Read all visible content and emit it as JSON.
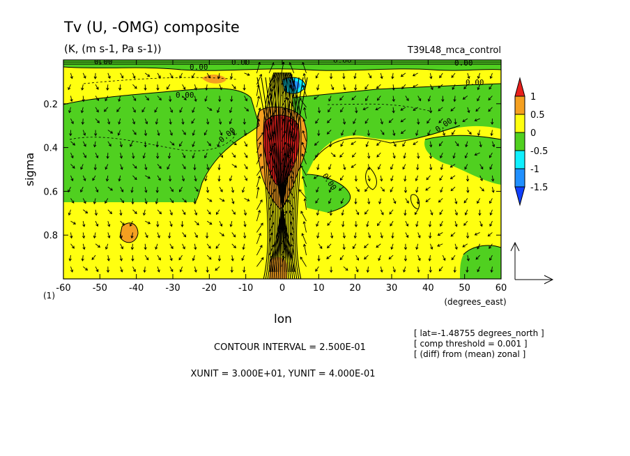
{
  "chart_data": {
    "type": "heatmap",
    "title": "Tv (U, -OMG) composite",
    "subtitle": "(K, (m s-1, Pa s-1))",
    "run_label": "T39L48_mca_control",
    "xlabel": "lon",
    "x_unit_label": "(degrees_east)",
    "ylabel": "sigma",
    "y_corner_label": "(1)",
    "xlim": [
      -60,
      60
    ],
    "ylim": [
      1.0,
      0.0
    ],
    "x_ticks": [
      -60,
      -50,
      -40,
      -30,
      -20,
      -10,
      0,
      10,
      20,
      30,
      40,
      50,
      60
    ],
    "y_ticks": [
      0.2,
      0.4,
      0.6,
      0.8
    ],
    "contour_label": "0.00",
    "colorbar": {
      "levels": [
        1,
        0.5,
        0,
        -0.5,
        -1,
        -1.5
      ],
      "colors": {
        "above_1": "#e8201c",
        "0.5_to_1": "#f5a020",
        "0_to_0.5": "#ffff10",
        "-0.5_to_0": "#50d020",
        "-1_to_-0.5": "#10f0ff",
        "-1.5_to_-1": "#2090ff",
        "below_-1.5": "#1040ff"
      }
    },
    "info_lines": [
      "[ lat=-1.48755 degrees_north ]",
      "[ comp threshold = 0.001 ]",
      "[ (diff) from (mean) zonal ]"
    ],
    "contour_interval": "CONTOUR INTERVAL = 2.500E-01",
    "unit_vectors": "XUNIT = 3.000E+01, YUNIT = 4.000E-01"
  }
}
